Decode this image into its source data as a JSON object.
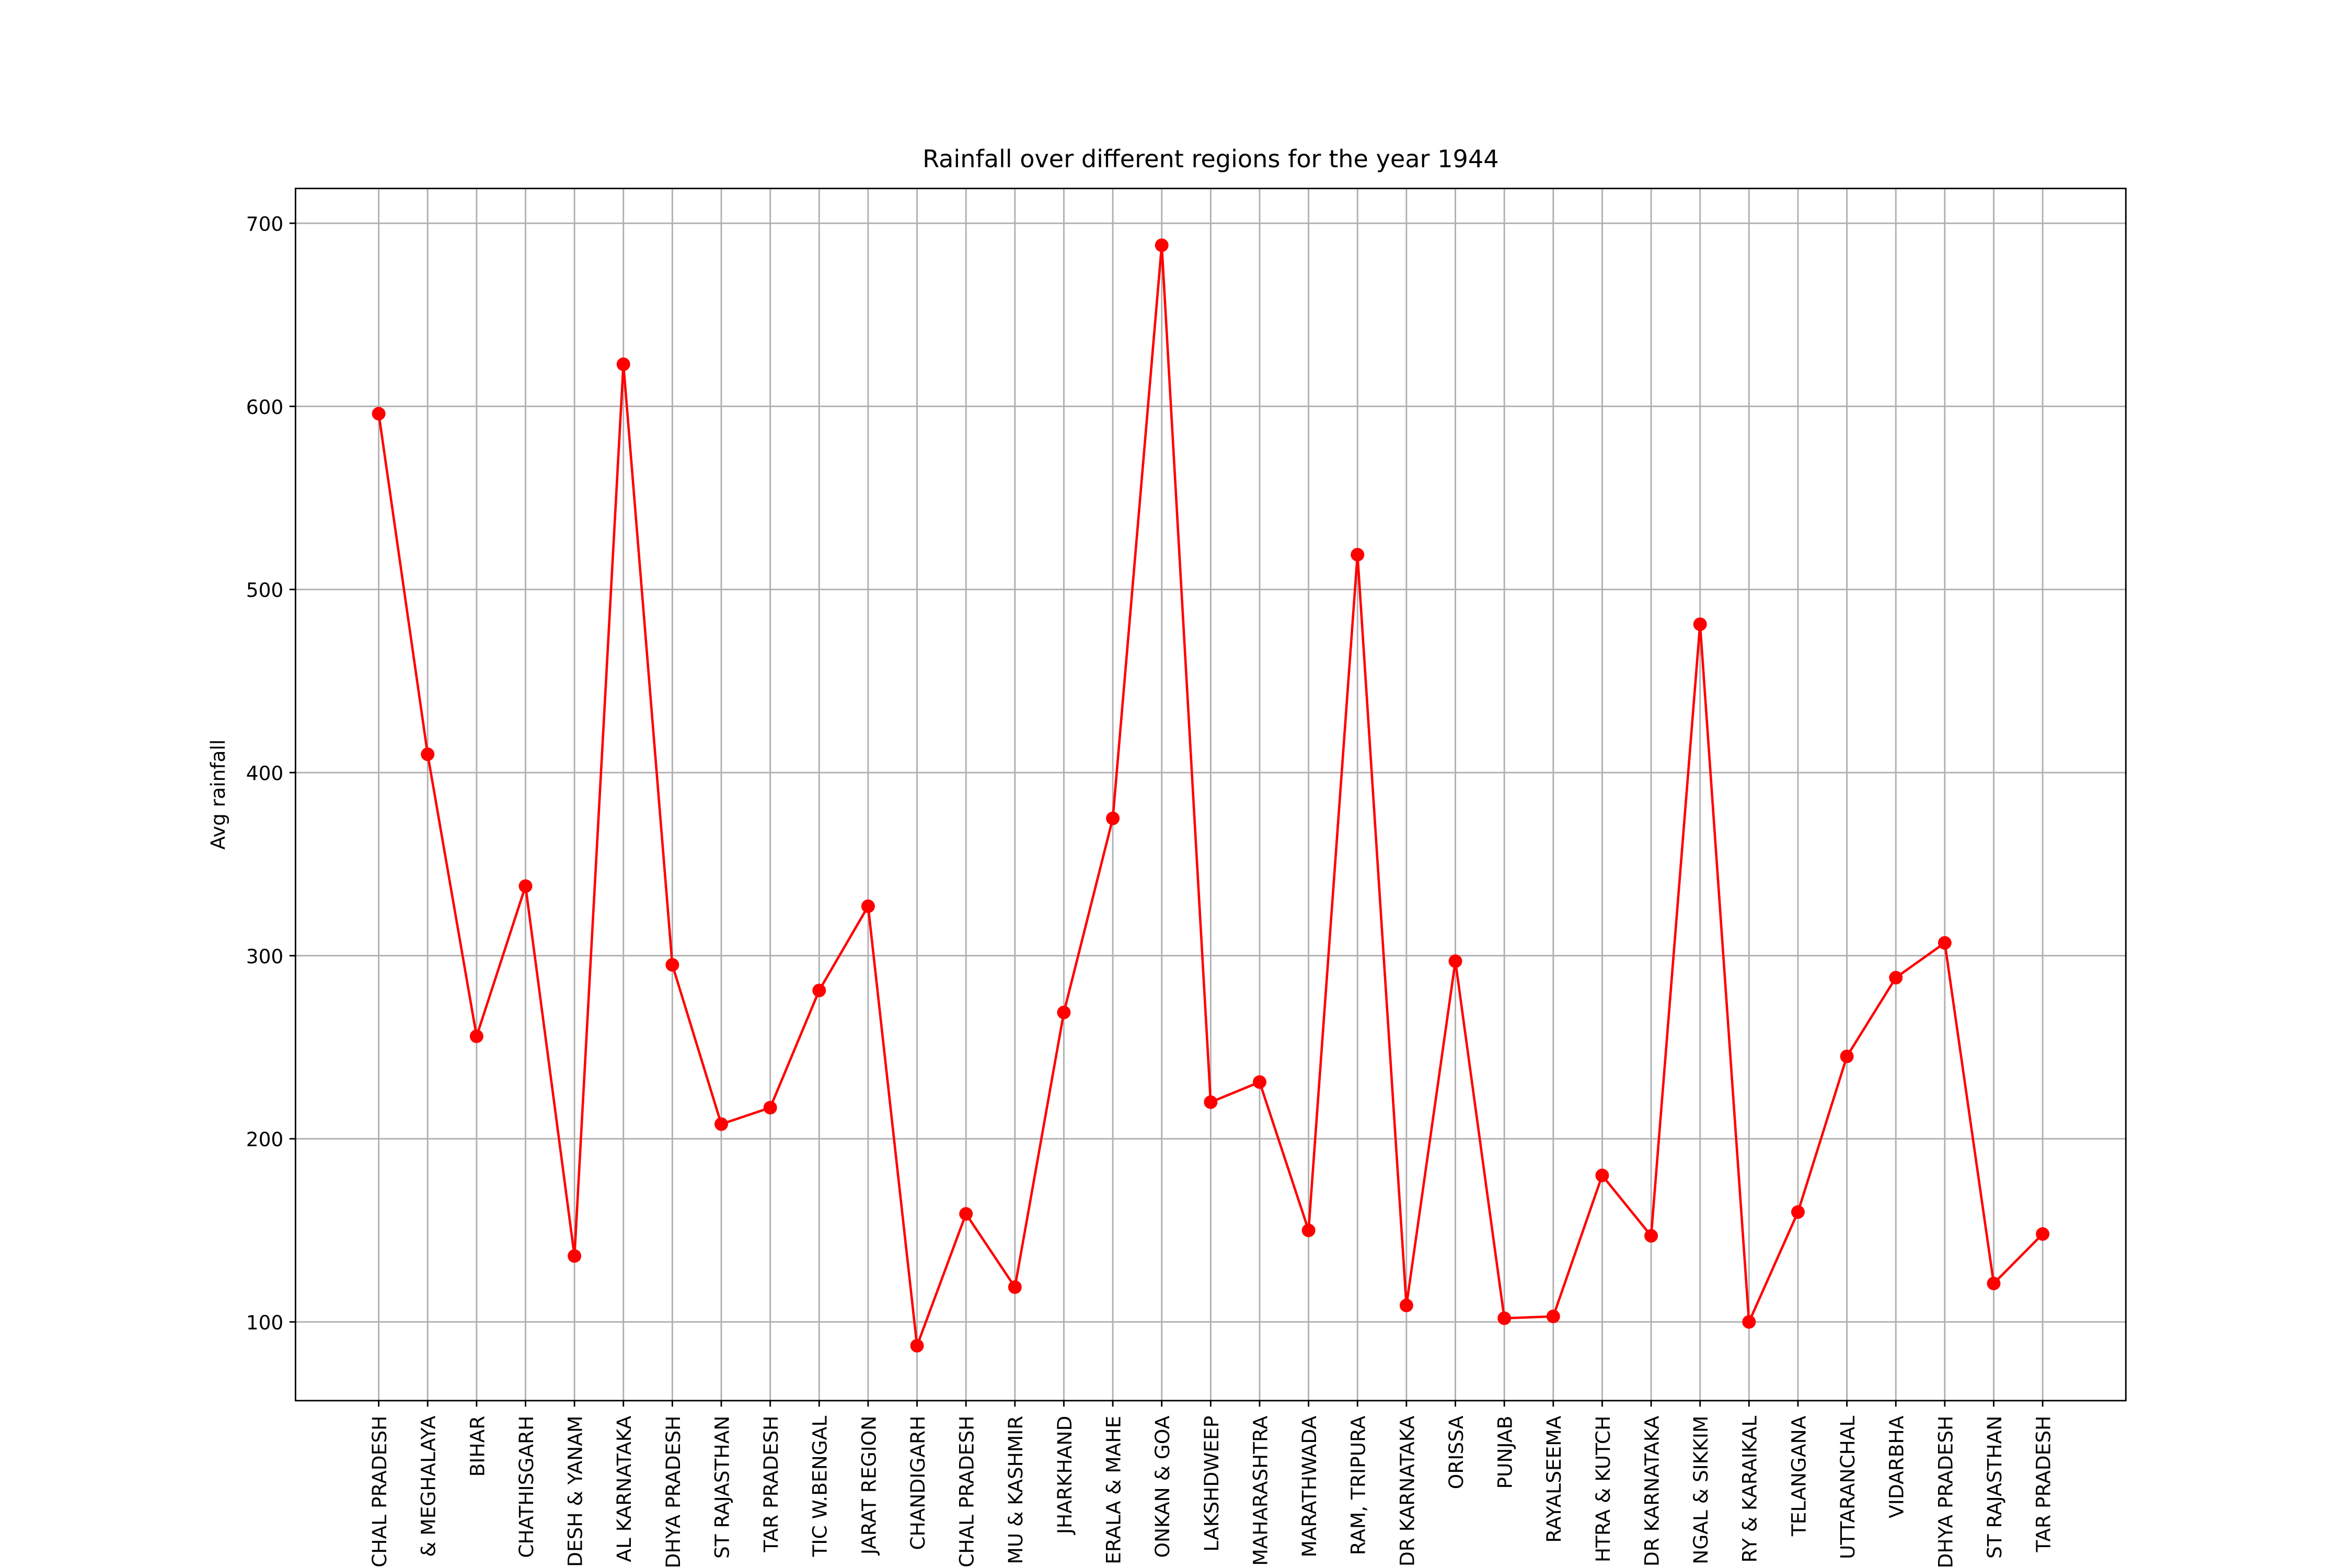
{
  "chart_data": {
    "type": "line",
    "title": "Rainfall over different regions for the year 1944",
    "y_label": "Avg rainfall",
    "categories": [
      "CHAL PRADESH",
      "& MEGHALAYA",
      "BIHAR",
      "CHATHISGARH",
      "DESH & YANAM",
      "AL KARNATAKA",
      "DHYA PRADESH",
      "ST RAJASTHAN",
      "TAR PRADESH",
      "TIC W.BENGAL",
      "JARAT REGION",
      "CHANDIGARH",
      "CHAL PRADESH",
      "MU & KASHMIR",
      "JHARKHAND",
      "ERALA & MAHE",
      "ONKAN & GOA",
      "LAKSHDWEEP",
      "MAHARASHTRA",
      "MARATHWADA",
      "RAM, TRIPURA",
      "DR KARNATAKA",
      "ORISSA",
      "PUNJAB",
      "RAYALSEEMA",
      "HTRA & KUTCH",
      "DR KARNATAKA",
      "NGAL & SIKKIM",
      "RY & KARAIKAL",
      "TELANGANA",
      "UTTARANCHAL",
      "VIDARBHA",
      "DHYA PRADESH",
      "ST RAJASTHAN",
      "TAR PRADESH"
    ],
    "series": [
      {
        "name": "Avg rainfall",
        "color": "#ff0000",
        "values": [
          596,
          410,
          256,
          338,
          136,
          623,
          295,
          208,
          217,
          281,
          327,
          87,
          159,
          119,
          269,
          375,
          688,
          220,
          231,
          150,
          519,
          109,
          297,
          102,
          103,
          180,
          147,
          481,
          100,
          160,
          245,
          288,
          307,
          121,
          148
        ]
      }
    ],
    "ylim": [
      57,
      719
    ],
    "yticks": [
      100,
      200,
      300,
      400,
      500,
      600,
      700
    ],
    "grid": true
  }
}
